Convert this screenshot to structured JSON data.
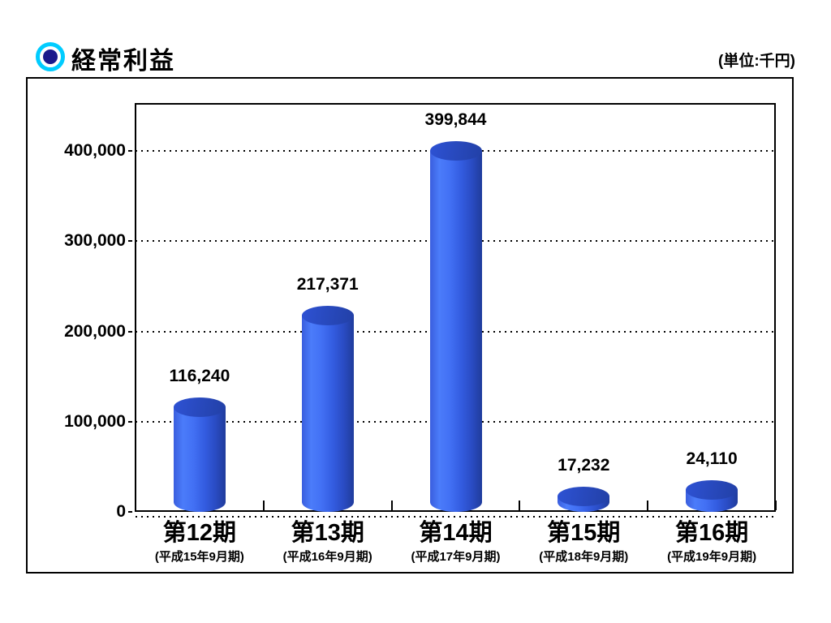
{
  "header": {
    "title": "経常利益",
    "unit_label": "(単位:千円)"
  },
  "chart_data": {
    "type": "bar",
    "subtype": "3d-cylinder",
    "title": "経常利益",
    "unit": "千円",
    "categories": [
      "第12期",
      "第13期",
      "第14期",
      "第15期",
      "第16期"
    ],
    "category_sublabels": [
      "(平成15年9月期)",
      "(平成16年9月期)",
      "(平成17年9月期)",
      "(平成18年9月期)",
      "(平成19年9月期)"
    ],
    "values": [
      116240,
      217371,
      399844,
      17232,
      24110
    ],
    "value_labels": [
      "116,240",
      "217,371",
      "399,844",
      "17,232",
      "24,110"
    ],
    "ytick_values": [
      0,
      100000,
      200000,
      300000,
      400000
    ],
    "ytick_labels": [
      "0",
      "100,000",
      "200,000",
      "300,000",
      "400,000"
    ],
    "ylim": [
      0,
      400000
    ],
    "xlabel": "",
    "ylabel": "",
    "grid": "dotted-horizontal",
    "legend": "none",
    "colors": {
      "bar_light": "#4B7CFA",
      "bar_dark": "#203C9C",
      "bar_top": "#2845B8",
      "bullet_ring": "#00CCFF",
      "bullet_dot": "#1A1A8C",
      "axis": "#000000",
      "background": "#FFFFFF"
    }
  }
}
